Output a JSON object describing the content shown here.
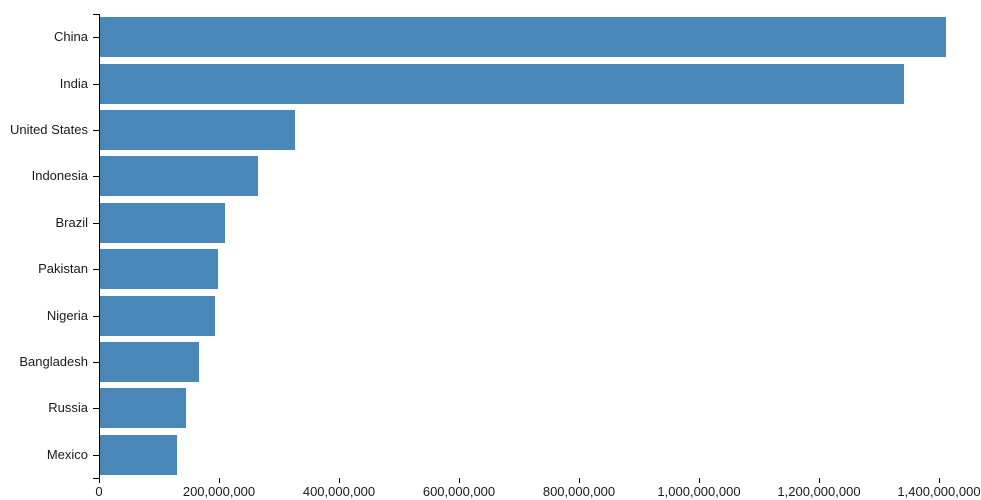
{
  "chart_data": {
    "type": "bar",
    "orientation": "horizontal",
    "title": "",
    "xlabel": "",
    "ylabel": "",
    "categories": [
      "China",
      "India",
      "United States",
      "Indonesia",
      "Brazil",
      "Pakistan",
      "Nigeria",
      "Bangladesh",
      "Russia",
      "Mexico"
    ],
    "values": [
      1410000000,
      1340000000,
      325000000,
      264000000,
      209000000,
      197000000,
      191000000,
      165000000,
      144000000,
      129000000
    ],
    "x_ticks": [
      0,
      200000000,
      400000000,
      600000000,
      800000000,
      1000000000,
      1200000000,
      1400000000
    ],
    "x_tick_labels": [
      "0",
      "200,000,000",
      "400,000,000",
      "600,000,000",
      "800,000,000",
      "1,000,000,000",
      "1,200,000,000",
      "1,400,000,000"
    ],
    "xlim": [
      0,
      1433333333
    ],
    "grid": false,
    "legend": false,
    "bar_color": "#4a87b9",
    "axis_color": "#000000",
    "text_color": "#1a1a1a"
  }
}
